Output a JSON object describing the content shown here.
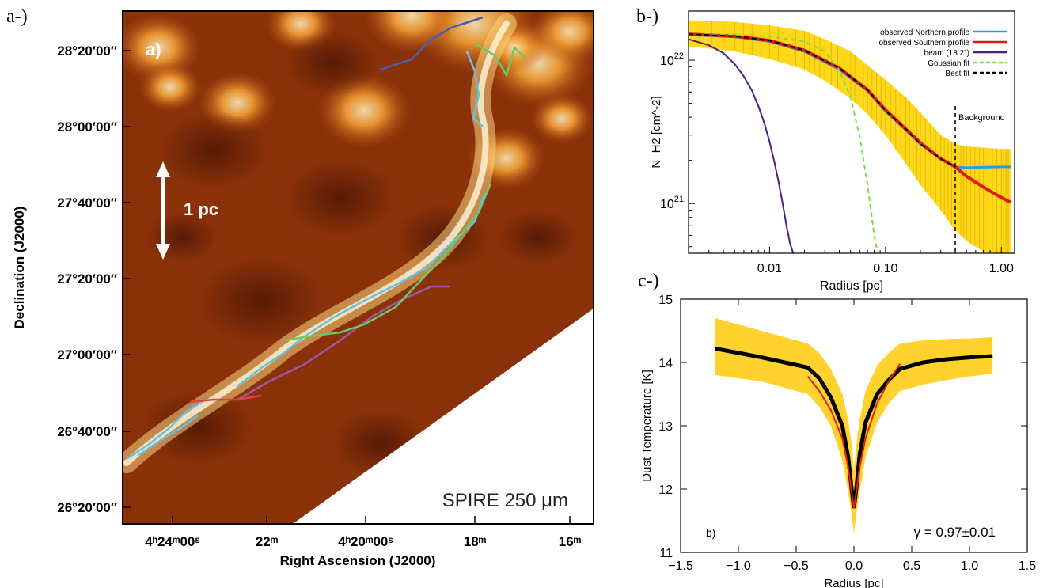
{
  "panels": {
    "a": "a-)",
    "b": "b-)",
    "c": "c-)"
  },
  "chart_data": [
    {
      "type": "heatmap",
      "panel": "a",
      "inset_label": "a)",
      "instrument_label": "SPIRE 250 μm",
      "scale_bar_label": "1 pc",
      "xlabel": "Right Ascension (J2000)",
      "ylabel": "Declination (J2000)",
      "x_ticks": [
        "4ʰ24ᵐ00ˢ",
        "22ᵐ",
        "4ʰ20ᵐ00ˢ",
        "18ᵐ",
        "16ᵐ"
      ],
      "y_ticks": [
        "28°20′00″",
        "28°00′00″",
        "27°40′00″",
        "27°20′00″",
        "27°00′00″",
        "26°40′00″",
        "26°20′00″"
      ],
      "colors": {
        "dark": "#4a1505",
        "mid": "#b24a0f",
        "bright": "#f6a437",
        "peak": "#fff2c6"
      },
      "series": [
        {
          "color": "#4a5fb0"
        },
        {
          "color": "#64c3e3"
        },
        {
          "color": "#6cc86b"
        },
        {
          "color": "#a057a5"
        },
        {
          "color": "#e0433d"
        }
      ]
    },
    {
      "type": "line",
      "panel": "b",
      "xlabel": "Radius [pc]",
      "ylabel": "N_H2 [cm^-2]",
      "xscale": "log",
      "yscale": "log",
      "xlim": [
        0.002,
        1.3
      ],
      "ylim": [
        4.5e+20,
        2.2e+22
      ],
      "x_ticks": [
        "0.01",
        "0.10",
        "1.00"
      ],
      "y_ticks": [
        {
          "base": "10",
          "exp": "22"
        },
        {
          "base": "10",
          "exp": "21"
        }
      ],
      "annotation": "Background",
      "background_radius": 0.4,
      "legend_position": "top-right",
      "series": [
        {
          "name": "observed Northern profile",
          "color": "#2a9ce0",
          "style": "solid",
          "x": [
            0.002,
            0.005,
            0.01,
            0.02,
            0.04,
            0.07,
            0.1,
            0.15,
            0.2,
            0.3,
            0.4,
            0.5,
            0.7,
            1.0,
            1.2
          ],
          "y": [
            1.5e+22,
            1.45e+22,
            1.35e+22,
            1.15e+22,
            8.6e+21,
            6.1e+21,
            4.4e+21,
            3.25e+21,
            2.6e+21,
            2.05e+21,
            1.8e+21,
            1.78e+21,
            1.79e+21,
            1.8e+21,
            1.8e+21
          ]
        },
        {
          "name": "observed Southern profile",
          "color": "#e01a1a",
          "style": "solid",
          "x": [
            0.002,
            0.005,
            0.01,
            0.02,
            0.04,
            0.07,
            0.1,
            0.15,
            0.2,
            0.3,
            0.4,
            0.5,
            0.7,
            1.0,
            1.2
          ],
          "y": [
            1.52e+22,
            1.47e+22,
            1.37e+22,
            1.17e+22,
            8.8e+21,
            6.2e+21,
            4.5e+21,
            3.3e+21,
            2.65e+21,
            2.05e+21,
            1.8e+21,
            1.55e+21,
            1.3e+21,
            1.1e+21,
            1.02e+21
          ]
        },
        {
          "name": "beam (18.2\")",
          "color": "#4b1f82",
          "style": "solid",
          "x": [
            0.002,
            0.003,
            0.004,
            0.005,
            0.006,
            0.007,
            0.008,
            0.009,
            0.01,
            0.011,
            0.012,
            0.013,
            0.014,
            0.015,
            0.016
          ],
          "y": [
            1.4e+22,
            1.27e+22,
            1.12e+22,
            9.4e+21,
            7.7e+21,
            6.2e+21,
            4.8e+21,
            3.65e+21,
            2.7e+21,
            1.95e+21,
            1.4e+21,
            9.9e+20,
            7e+20,
            5.3e+20,
            4.5e+20
          ]
        },
        {
          "name": "Goussian fit",
          "color": "#7ddc3a",
          "style": "dashed",
          "x": [
            0.002,
            0.005,
            0.01,
            0.02,
            0.03,
            0.04,
            0.05,
            0.06,
            0.07,
            0.08,
            0.085
          ],
          "y": [
            1.52e+22,
            1.5e+22,
            1.46e+22,
            1.35e+22,
            1.15e+22,
            8.5e+21,
            5.5e+21,
            2.9e+21,
            1.35e+21,
            6e+20,
            4.6e+20
          ]
        },
        {
          "name": "Best fit",
          "color": "#000000",
          "style": "dashed",
          "x": [
            0.002,
            0.005,
            0.01,
            0.02,
            0.04,
            0.07,
            0.1,
            0.15,
            0.2,
            0.3,
            0.4
          ],
          "y": [
            1.52e+22,
            1.47e+22,
            1.37e+22,
            1.17e+22,
            8.8e+21,
            6.2e+21,
            4.45e+21,
            3.3e+21,
            2.6e+21,
            2.05e+21,
            1.8e+21
          ]
        }
      ],
      "error_band": {
        "color": "#ffd81a",
        "x": [
          0.002,
          0.005,
          0.01,
          0.02,
          0.03,
          0.05,
          0.07,
          0.1,
          0.15,
          0.2,
          0.3,
          0.4,
          0.5,
          0.7,
          1.0,
          1.2
        ],
        "upper": [
          1.9e+22,
          1.85e+22,
          1.75e+22,
          1.6e+22,
          1.4e+22,
          1.15e+22,
          9.2e+21,
          7.3e+21,
          5.5e+21,
          4.3e+21,
          3e+21,
          2.6e+21,
          2.5e+21,
          2.45e+21,
          2.4e+21,
          2.4e+21
        ],
        "lower": [
          1.25e+22,
          1.15e+22,
          1.02e+22,
          8.6e+21,
          7.2e+21,
          5.4e+21,
          4.2e+21,
          3e+21,
          1.9e+21,
          1.35e+21,
          9e+20,
          6.5e+20,
          5.5e+20,
          4.6e+20,
          4.5e+20,
          4.5e+20
        ]
      }
    },
    {
      "type": "line",
      "panel": "c",
      "inset_label": "b)",
      "annotation": "γ = 0.97±0.01",
      "xlabel": "Radius [pc]",
      "ylabel": "Dust Temperature [K]",
      "xlim": [
        -1.5,
        1.5
      ],
      "ylim": [
        11,
        15
      ],
      "x_ticks": [
        -1.5,
        -1.0,
        -0.5,
        0.0,
        0.5,
        1.0,
        1.5
      ],
      "y_ticks": [
        11,
        12,
        13,
        14,
        15
      ],
      "series": [
        {
          "color": "#000000",
          "x": [
            -1.2,
            -1.0,
            -0.8,
            -0.6,
            -0.4,
            -0.3,
            -0.2,
            -0.1,
            -0.05,
            -0.02,
            0,
            0.02,
            0.05,
            0.1,
            0.2,
            0.3,
            0.4,
            0.6,
            0.8,
            1.0,
            1.2
          ],
          "y": [
            14.22,
            14.15,
            14.08,
            14.0,
            13.92,
            13.75,
            13.45,
            13.0,
            12.5,
            12.0,
            11.7,
            12.0,
            12.55,
            13.05,
            13.5,
            13.72,
            13.9,
            14.0,
            14.05,
            14.08,
            14.1
          ]
        },
        {
          "color": "#e02020",
          "x": [
            -0.4,
            -0.3,
            -0.2,
            -0.1,
            -0.05,
            -0.02,
            0,
            0.02,
            0.05,
            0.1,
            0.2,
            0.3,
            0.4
          ],
          "y": [
            13.78,
            13.55,
            13.25,
            12.8,
            12.35,
            11.95,
            11.7,
            11.95,
            12.35,
            12.8,
            13.35,
            13.7,
            13.98
          ]
        }
      ],
      "error_band": {
        "color": "#ffd22e",
        "x": [
          -1.2,
          -1.0,
          -0.8,
          -0.6,
          -0.4,
          -0.3,
          -0.2,
          -0.1,
          -0.05,
          -0.02,
          0,
          0.02,
          0.05,
          0.1,
          0.2,
          0.3,
          0.4,
          0.6,
          0.8,
          1.0,
          1.2
        ],
        "upper": [
          14.7,
          14.6,
          14.5,
          14.4,
          14.3,
          14.15,
          13.9,
          13.5,
          13.1,
          12.7,
          12.3,
          12.7,
          13.1,
          13.55,
          13.95,
          14.15,
          14.3,
          14.35,
          14.37,
          14.38,
          14.4
        ],
        "lower": [
          13.8,
          13.75,
          13.7,
          13.6,
          13.5,
          13.3,
          13.0,
          12.45,
          11.95,
          11.6,
          11.3,
          11.6,
          11.95,
          12.5,
          13.05,
          13.35,
          13.55,
          13.65,
          13.72,
          13.78,
          13.82
        ]
      }
    }
  ]
}
